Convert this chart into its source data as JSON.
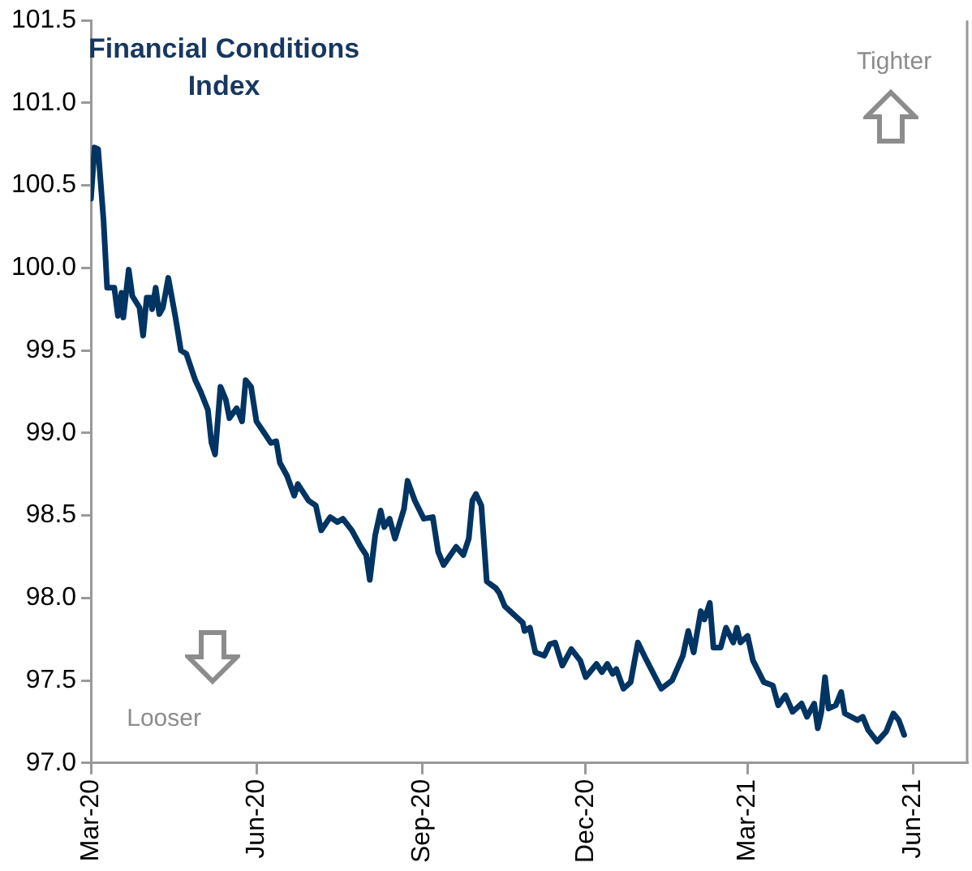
{
  "chart_data": {
    "type": "line",
    "title": "Financial Conditions Index",
    "annotations": [
      "Tighter",
      "Looser"
    ],
    "x": [
      "2020-03-01",
      "2020-03-03",
      "2020-03-05",
      "2020-03-08",
      "2020-03-10",
      "2020-03-14",
      "2020-03-16",
      "2020-03-18",
      "2020-03-19",
      "2020-03-22",
      "2020-03-24",
      "2020-03-28",
      "2020-03-30",
      "2020-04-01",
      "2020-04-03",
      "2020-04-04",
      "2020-04-06",
      "2020-04-08",
      "2020-04-10",
      "2020-04-13",
      "2020-04-17",
      "2020-04-20",
      "2020-04-23",
      "2020-04-28",
      "2020-05-01",
      "2020-05-05",
      "2020-05-07",
      "2020-05-09",
      "2020-05-12",
      "2020-05-15",
      "2020-05-17",
      "2020-05-21",
      "2020-05-24",
      "2020-05-26",
      "2020-05-29",
      "2020-06-01",
      "2020-06-06",
      "2020-06-09",
      "2020-06-12",
      "2020-06-14",
      "2020-06-18",
      "2020-06-22",
      "2020-06-24",
      "2020-06-30",
      "2020-07-04",
      "2020-07-07",
      "2020-07-12",
      "2020-07-16",
      "2020-07-19",
      "2020-07-24",
      "2020-07-29",
      "2020-08-01",
      "2020-08-03",
      "2020-08-06",
      "2020-08-09",
      "2020-08-11",
      "2020-08-14",
      "2020-08-17",
      "2020-08-22",
      "2020-08-24",
      "2020-08-28",
      "2020-09-02",
      "2020-09-07",
      "2020-09-10",
      "2020-09-13",
      "2020-09-20",
      "2020-09-24",
      "2020-09-27",
      "2020-09-29",
      "2020-10-01",
      "2020-10-04",
      "2020-10-07",
      "2020-10-12",
      "2020-10-14",
      "2020-10-17",
      "2020-10-20",
      "2020-10-27",
      "2020-10-28",
      "2020-10-31",
      "2020-11-03",
      "2020-11-08",
      "2020-11-11",
      "2020-11-14",
      "2020-11-18",
      "2020-11-23",
      "2020-11-28",
      "2020-12-01",
      "2020-12-07",
      "2020-12-10",
      "2020-12-13",
      "2020-12-16",
      "2020-12-18",
      "2020-12-22",
      "2020-12-26",
      "2020-12-30",
      "2021-01-03",
      "2021-01-12",
      "2021-01-18",
      "2021-01-24",
      "2021-01-27",
      "2021-01-30",
      "2021-02-03",
      "2021-02-05",
      "2021-02-08",
      "2021-02-10",
      "2021-02-14",
      "2021-02-17",
      "2021-02-21",
      "2021-02-23",
      "2021-02-25",
      "2021-03-01",
      "2021-03-04",
      "2021-03-10",
      "2021-03-15",
      "2021-03-18",
      "2021-03-22",
      "2021-03-26",
      "2021-03-31",
      "2021-04-03",
      "2021-04-07",
      "2021-04-09",
      "2021-04-11",
      "2021-04-13",
      "2021-04-15",
      "2021-04-19",
      "2021-04-22",
      "2021-04-24",
      "2021-05-01",
      "2021-05-04",
      "2021-05-07",
      "2021-05-12",
      "2021-05-17",
      "2021-05-21",
      "2021-05-24",
      "2021-05-27"
    ],
    "series": [
      {
        "color": "#003462",
        "values": [
          100.42,
          100.73,
          100.72,
          100.29,
          99.88,
          99.88,
          99.71,
          99.85,
          99.7,
          99.99,
          99.83,
          99.76,
          99.59,
          99.82,
          99.82,
          99.75,
          99.88,
          99.72,
          99.76,
          99.94,
          99.7,
          99.5,
          99.48,
          99.32,
          99.25,
          99.14,
          98.94,
          98.87,
          99.28,
          99.2,
          99.09,
          99.15,
          99.07,
          99.32,
          99.28,
          99.07,
          98.99,
          98.94,
          98.95,
          98.82,
          98.74,
          98.62,
          98.69,
          98.59,
          98.56,
          98.41,
          98.49,
          98.46,
          98.48,
          98.41,
          98.31,
          98.26,
          98.11,
          98.38,
          98.53,
          98.43,
          98.48,
          98.36,
          98.54,
          98.71,
          98.59,
          98.48,
          98.49,
          98.28,
          98.2,
          98.31,
          98.26,
          98.36,
          98.59,
          98.63,
          98.56,
          98.1,
          98.06,
          98.03,
          97.95,
          97.92,
          97.85,
          97.8,
          97.82,
          97.67,
          97.65,
          97.72,
          97.73,
          97.59,
          97.69,
          97.62,
          97.52,
          97.6,
          97.55,
          97.6,
          97.54,
          97.57,
          97.45,
          97.49,
          97.73,
          97.64,
          97.45,
          97.5,
          97.65,
          97.8,
          97.67,
          97.92,
          97.87,
          97.97,
          97.7,
          97.7,
          97.82,
          97.73,
          97.82,
          97.73,
          97.77,
          97.62,
          97.49,
          97.47,
          97.35,
          97.41,
          97.31,
          97.36,
          97.28,
          97.36,
          97.21,
          97.31,
          97.52,
          97.33,
          97.35,
          97.43,
          97.3,
          97.26,
          97.28,
          97.2,
          97.13,
          97.19,
          97.3,
          97.26,
          97.17
        ]
      }
    ],
    "xlim": [
      "2020-03-01",
      "2021-07-01"
    ],
    "xticks": [
      {
        "value": "2020-03-01",
        "label": "Mar-20"
      },
      {
        "value": "2020-06-01",
        "label": "Jun-20"
      },
      {
        "value": "2020-09-01",
        "label": "Sep-20"
      },
      {
        "value": "2020-12-01",
        "label": "Dec-20"
      },
      {
        "value": "2021-03-01",
        "label": "Mar-21"
      },
      {
        "value": "2021-06-01",
        "label": "Jun-21"
      }
    ],
    "ylim": [
      97.0,
      101.5
    ],
    "yticks": [
      {
        "value": 97.0,
        "label": "97.0"
      },
      {
        "value": 97.5,
        "label": "97.5"
      },
      {
        "value": 98.0,
        "label": "98.0"
      },
      {
        "value": 98.5,
        "label": "98.5"
      },
      {
        "value": 99.0,
        "label": "99.0"
      },
      {
        "value": 99.5,
        "label": "99.5"
      },
      {
        "value": 100.0,
        "label": "100.0"
      },
      {
        "value": 100.5,
        "label": "100.5"
      },
      {
        "value": 101.0,
        "label": "101.0"
      },
      {
        "value": 101.5,
        "label": "101.5"
      }
    ],
    "marker": "none",
    "line_style": "solid"
  }
}
